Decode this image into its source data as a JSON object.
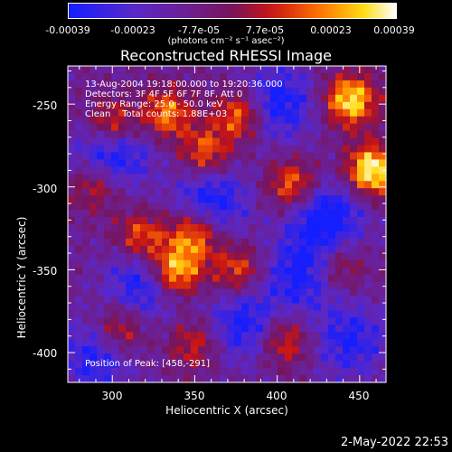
{
  "colorbar": {
    "ticks": [
      "-0.00039",
      "-0.00023",
      "-7.7e-05",
      "7.7e-05",
      "0.00023",
      "0.00039"
    ],
    "units": "(photons cm⁻² s⁻¹ asec⁻²)"
  },
  "annotations": {
    "line1": "13-Aug-2004 19:18:00.000 to 19:20:36.000",
    "line2": "Detectors: 3F 4F 5F 6F 7F 8F, Att 0",
    "line3": "Energy Range: 25.0 - 50.0 keV",
    "line4": "Clean    Total counts: 1.88E+03",
    "peak": "Position of Peak: [458,-291]"
  },
  "timestamp": "2-May-2022 22:53",
  "chart_data": {
    "type": "heatmap",
    "title": "Reconstructed RHESSI Image",
    "xlabel": "Heliocentric X (arcsec)",
    "ylabel": "Heliocentric Y (arcsec)",
    "xlim": [
      273,
      466
    ],
    "ylim": [
      -418,
      -227
    ],
    "x_ticks": [
      300,
      350,
      400,
      450
    ],
    "y_ticks": [
      -250,
      -300,
      -350,
      -400
    ],
    "x_tick_labels": [
      "300",
      "350",
      "400",
      "450"
    ],
    "y_tick_labels": [
      "-250",
      "-300",
      "-350",
      "-400"
    ],
    "colorbar_range": [
      -0.00039,
      0.00039
    ],
    "colormap": "blue-purple-red-yellow-white",
    "bright_sources": [
      {
        "x": 338,
        "y": -353,
        "level": 0.95
      },
      {
        "x": 350,
        "y": -330,
        "level": 0.75
      },
      {
        "x": 445,
        "y": -248,
        "level": 0.9
      },
      {
        "x": 458,
        "y": -291,
        "level": 1.0
      },
      {
        "x": 300,
        "y": -263,
        "level": 0.7
      },
      {
        "x": 333,
        "y": -256,
        "level": 0.65
      },
      {
        "x": 378,
        "y": -257,
        "level": 0.7
      },
      {
        "x": 357,
        "y": -280,
        "level": 0.6
      },
      {
        "x": 410,
        "y": -300,
        "level": 0.65
      },
      {
        "x": 318,
        "y": -332,
        "level": 0.6
      },
      {
        "x": 376,
        "y": -352,
        "level": 0.55
      },
      {
        "x": 405,
        "y": -395,
        "level": 0.55
      },
      {
        "x": 305,
        "y": -388,
        "level": 0.55
      },
      {
        "x": 290,
        "y": -300,
        "level": 0.5
      },
      {
        "x": 438,
        "y": -350,
        "level": 0.45
      },
      {
        "x": 350,
        "y": -397,
        "level": 0.45
      }
    ],
    "dark_regions": [
      {
        "x": 300,
        "y": -280,
        "level": -0.7
      },
      {
        "x": 430,
        "y": -320,
        "level": -0.7
      },
      {
        "x": 400,
        "y": -250,
        "level": -0.6
      },
      {
        "x": 360,
        "y": -310,
        "level": -0.6
      },
      {
        "x": 320,
        "y": -360,
        "level": -0.6
      },
      {
        "x": 415,
        "y": -355,
        "level": -0.55
      },
      {
        "x": 290,
        "y": -405,
        "level": -0.5
      },
      {
        "x": 380,
        "y": -385,
        "level": -0.55
      },
      {
        "x": 445,
        "y": -395,
        "level": -0.5
      }
    ]
  }
}
